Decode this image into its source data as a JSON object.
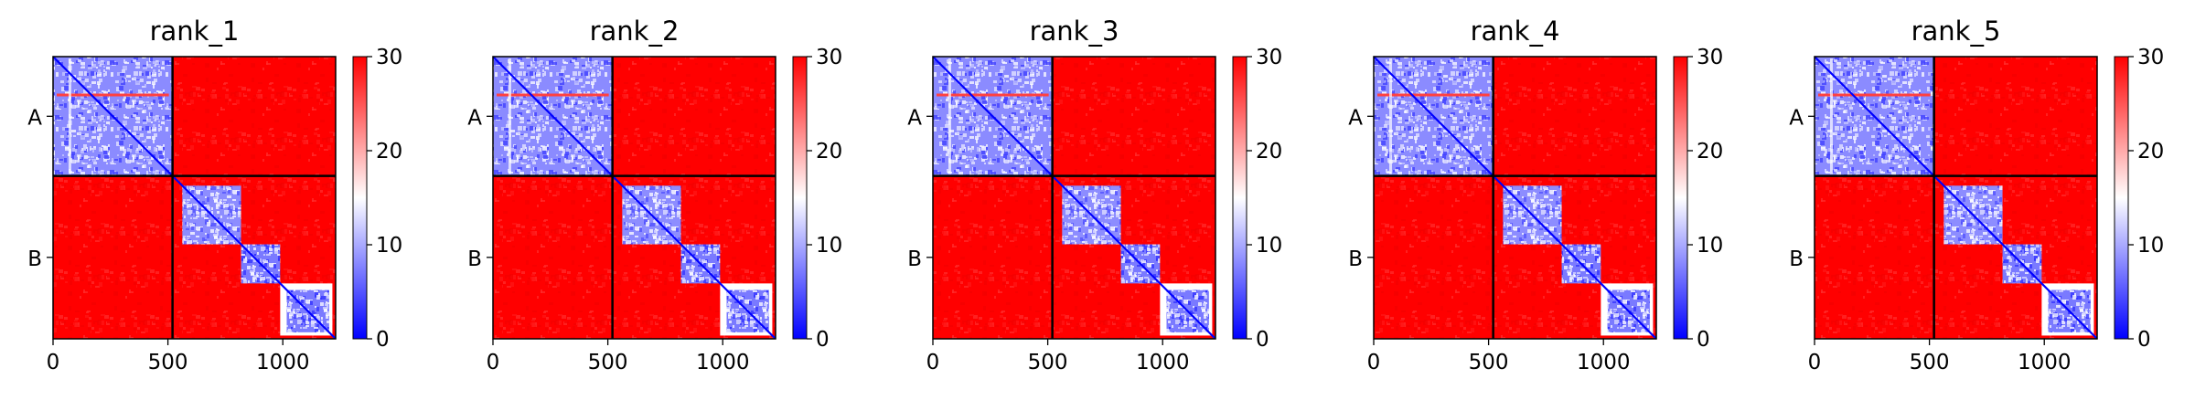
{
  "chart_data": [
    {
      "type": "heatmap",
      "title": "rank_1",
      "xlabel": "",
      "ylabel": "",
      "x_ticks": [
        0,
        500,
        1000
      ],
      "xlim": [
        0,
        1230
      ],
      "chain_labels": [
        "A",
        "B"
      ],
      "chain_boundary": 520,
      "total_length": 1230,
      "colorbar": {
        "ticks": [
          0,
          10,
          20,
          30
        ],
        "range": [
          0,
          30
        ],
        "colors": [
          "#0000ff",
          "#ffffff",
          "#ff0000"
        ]
      }
    },
    {
      "type": "heatmap",
      "title": "rank_2",
      "xlabel": "",
      "ylabel": "",
      "x_ticks": [
        0,
        500,
        1000
      ],
      "xlim": [
        0,
        1230
      ],
      "chain_labels": [
        "A",
        "B"
      ],
      "chain_boundary": 520,
      "total_length": 1230,
      "colorbar": {
        "ticks": [
          0,
          10,
          20,
          30
        ],
        "range": [
          0,
          30
        ],
        "colors": [
          "#0000ff",
          "#ffffff",
          "#ff0000"
        ]
      }
    },
    {
      "type": "heatmap",
      "title": "rank_3",
      "xlabel": "",
      "ylabel": "",
      "x_ticks": [
        0,
        500,
        1000
      ],
      "xlim": [
        0,
        1230
      ],
      "chain_labels": [
        "A",
        "B"
      ],
      "chain_boundary": 520,
      "total_length": 1230,
      "colorbar": {
        "ticks": [
          0,
          10,
          20,
          30
        ],
        "range": [
          0,
          30
        ],
        "colors": [
          "#0000ff",
          "#ffffff",
          "#ff0000"
        ]
      }
    },
    {
      "type": "heatmap",
      "title": "rank_4",
      "xlabel": "",
      "ylabel": "",
      "x_ticks": [
        0,
        500,
        1000
      ],
      "xlim": [
        0,
        1230
      ],
      "chain_labels": [
        "A",
        "B"
      ],
      "chain_boundary": 520,
      "total_length": 1230,
      "colorbar": {
        "ticks": [
          0,
          10,
          20,
          30
        ],
        "range": [
          0,
          30
        ],
        "colors": [
          "#0000ff",
          "#ffffff",
          "#ff0000"
        ]
      }
    },
    {
      "type": "heatmap",
      "title": "rank_5",
      "xlabel": "",
      "ylabel": "",
      "x_ticks": [
        0,
        500,
        1000
      ],
      "xlim": [
        0,
        1230
      ],
      "chain_labels": [
        "A",
        "B"
      ],
      "chain_boundary": 520,
      "total_length": 1230,
      "colorbar": {
        "ticks": [
          0,
          10,
          20,
          30
        ],
        "range": [
          0,
          30
        ],
        "colors": [
          "#0000ff",
          "#ffffff",
          "#ff0000"
        ]
      }
    }
  ]
}
